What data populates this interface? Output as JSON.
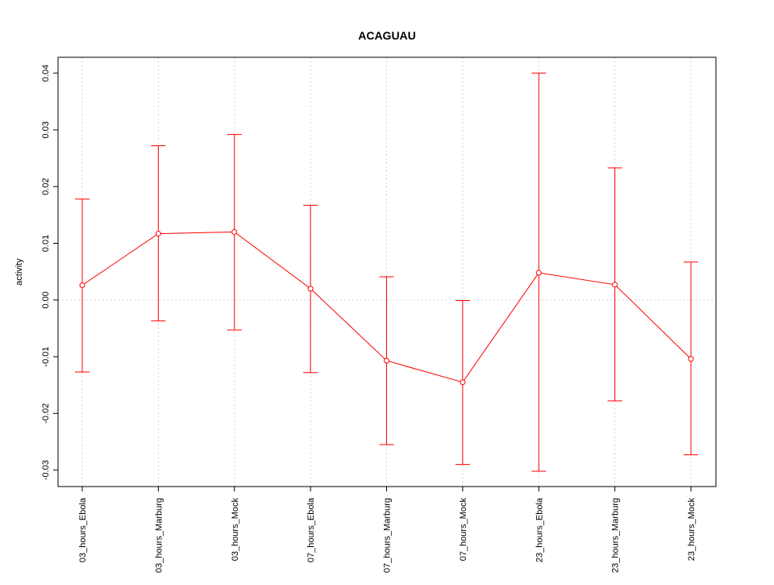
{
  "chart_data": {
    "type": "line",
    "title": "ACAGUAU",
    "xlabel": "",
    "ylabel": "activity",
    "categories": [
      "03_hours_Ebola",
      "03_hours_Marburg",
      "03_hours_Mock",
      "07_hours_Ebola",
      "07_hours_Marburg",
      "07_hours_Mock",
      "23_hours_Ebola",
      "23_hours_Marburg",
      "23_hours_Mock"
    ],
    "series": [
      {
        "values": [
          0.0026,
          0.0117,
          0.012,
          0.002,
          -0.0107,
          -0.0145,
          0.0048,
          0.0027,
          -0.0104
        ],
        "upper": [
          0.0178,
          0.0272,
          0.0292,
          0.0167,
          0.0041,
          -0.0001,
          0.04,
          0.0233,
          0.0067
        ],
        "lower": [
          -0.0127,
          -0.0037,
          -0.0053,
          -0.0128,
          -0.0255,
          -0.029,
          -0.0302,
          -0.0178,
          -0.0273
        ]
      }
    ],
    "yticks": [
      -0.03,
      -0.02,
      -0.01,
      0.0,
      0.01,
      0.02,
      0.03,
      0.04
    ],
    "ytick_labels": [
      "-0.03",
      "-0.02",
      "-0.01",
      "0.00",
      "0.01",
      "0.02",
      "0.03",
      "0.04"
    ],
    "ylim": [
      -0.0329,
      0.0428
    ],
    "grid": true,
    "colors": {
      "series": "#ff0000",
      "grid": "#d3d3d3",
      "axis": "#000000"
    }
  }
}
